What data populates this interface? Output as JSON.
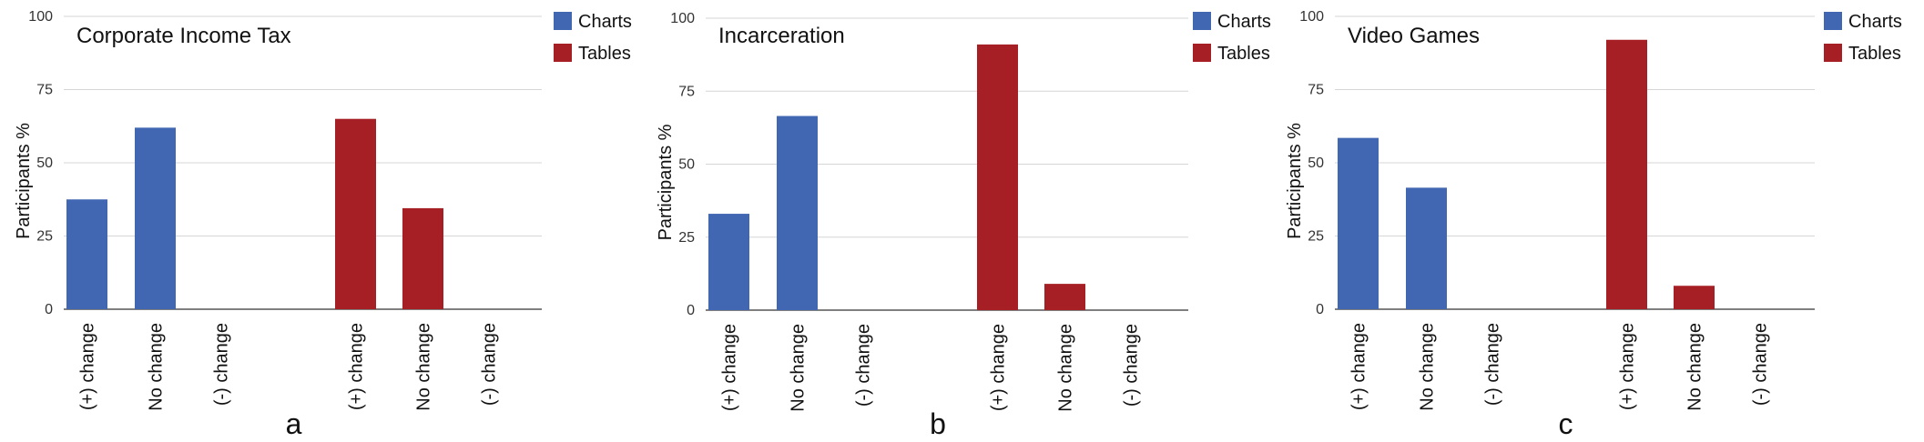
{
  "legend": {
    "series": [
      {
        "name": "Charts",
        "color": "#4267b2"
      },
      {
        "name": "Tables",
        "color": "#a61f24"
      }
    ]
  },
  "chart_data": [
    {
      "type": "bar",
      "panel": "a",
      "title": "Corporate Income Tax",
      "ylabel": "Participants %",
      "ylim": [
        0,
        100
      ],
      "yticks": [
        0,
        25,
        50,
        75,
        100
      ],
      "grid": true,
      "legend_position": "top-right",
      "groups": [
        {
          "series": "Charts",
          "categories": [
            "(+) change",
            "No change",
            "(-) change"
          ],
          "values": [
            37.5,
            62,
            0
          ]
        },
        {
          "series": "Tables",
          "categories": [
            "(+) change",
            "No change",
            "(-) change"
          ],
          "values": [
            65,
            34.5,
            0
          ]
        }
      ]
    },
    {
      "type": "bar",
      "panel": "b",
      "title": "Incarceration",
      "ylabel": "Participants %",
      "ylim": [
        0,
        100
      ],
      "yticks": [
        0,
        25,
        50,
        75,
        100
      ],
      "grid": true,
      "legend_position": "top-right",
      "groups": [
        {
          "series": "Charts",
          "categories": [
            "(+) change",
            "No change",
            "(-) change"
          ],
          "values": [
            33,
            66.5,
            0
          ]
        },
        {
          "series": "Tables",
          "categories": [
            "(+) change",
            "No change",
            "(-) change"
          ],
          "values": [
            91,
            9,
            0
          ]
        }
      ]
    },
    {
      "type": "bar",
      "panel": "c",
      "title": "Video Games",
      "ylabel": "Participants %",
      "ylim": [
        0,
        100
      ],
      "yticks": [
        0,
        25,
        50,
        75,
        100
      ],
      "grid": true,
      "legend_position": "top-right",
      "groups": [
        {
          "series": "Charts",
          "categories": [
            "(+) change",
            "No change",
            "(-) change"
          ],
          "values": [
            58.5,
            41.5,
            0
          ]
        },
        {
          "series": "Tables",
          "categories": [
            "(+) change",
            "No change",
            "(-) change"
          ],
          "values": [
            92,
            8,
            0
          ]
        }
      ]
    }
  ]
}
